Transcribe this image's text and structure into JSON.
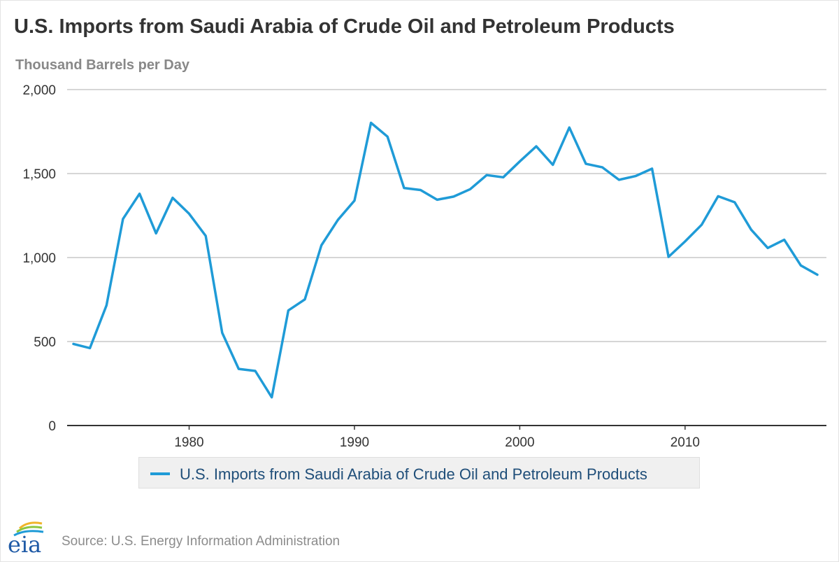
{
  "chart_data": {
    "type": "line",
    "title": "U.S. Imports from Saudi Arabia of Crude Oil and Petroleum Products",
    "ylabel": "Thousand Barrels per Day",
    "xlabel": "",
    "xlim": [
      1973,
      2018
    ],
    "ylim": [
      0,
      2000
    ],
    "yticks": [
      0,
      500,
      1000,
      1500,
      2000
    ],
    "ytick_labels": [
      "0",
      "500",
      "1,000",
      "1,500",
      "2,000"
    ],
    "xticks": [
      1980,
      1990,
      2000,
      2010
    ],
    "xtick_labels": [
      "1980",
      "1990",
      "2000",
      "2010"
    ],
    "grid": true,
    "legend_position": "bottom-center",
    "series": [
      {
        "name": "U.S. Imports from Saudi Arabia of Crude Oil and Petroleum Products",
        "color": "#1f9bd7",
        "x": [
          1973,
          1974,
          1975,
          1976,
          1977,
          1978,
          1979,
          1980,
          1981,
          1982,
          1983,
          1984,
          1985,
          1986,
          1987,
          1988,
          1989,
          1990,
          1991,
          1992,
          1993,
          1994,
          1995,
          1996,
          1997,
          1998,
          1999,
          2000,
          2001,
          2002,
          2003,
          2004,
          2005,
          2006,
          2007,
          2008,
          2009,
          2010,
          2011,
          2012,
          2013,
          2014,
          2015,
          2016,
          2017,
          2018
        ],
        "values": [
          486,
          461,
          715,
          1230,
          1380,
          1144,
          1356,
          1261,
          1129,
          552,
          337,
          325,
          168,
          685,
          751,
          1073,
          1224,
          1339,
          1802,
          1720,
          1414,
          1402,
          1344,
          1363,
          1407,
          1491,
          1478,
          1572,
          1662,
          1552,
          1774,
          1558,
          1537,
          1463,
          1485,
          1529,
          1004,
          1096,
          1195,
          1365,
          1329,
          1166,
          1057,
          1106,
          953,
          898
        ]
      }
    ]
  },
  "legend": {
    "label": "U.S. Imports from Saudi Arabia of Crude Oil and Petroleum Products"
  },
  "footer": {
    "logo_text": "eia",
    "source": "Source: U.S. Energy Information Administration"
  }
}
